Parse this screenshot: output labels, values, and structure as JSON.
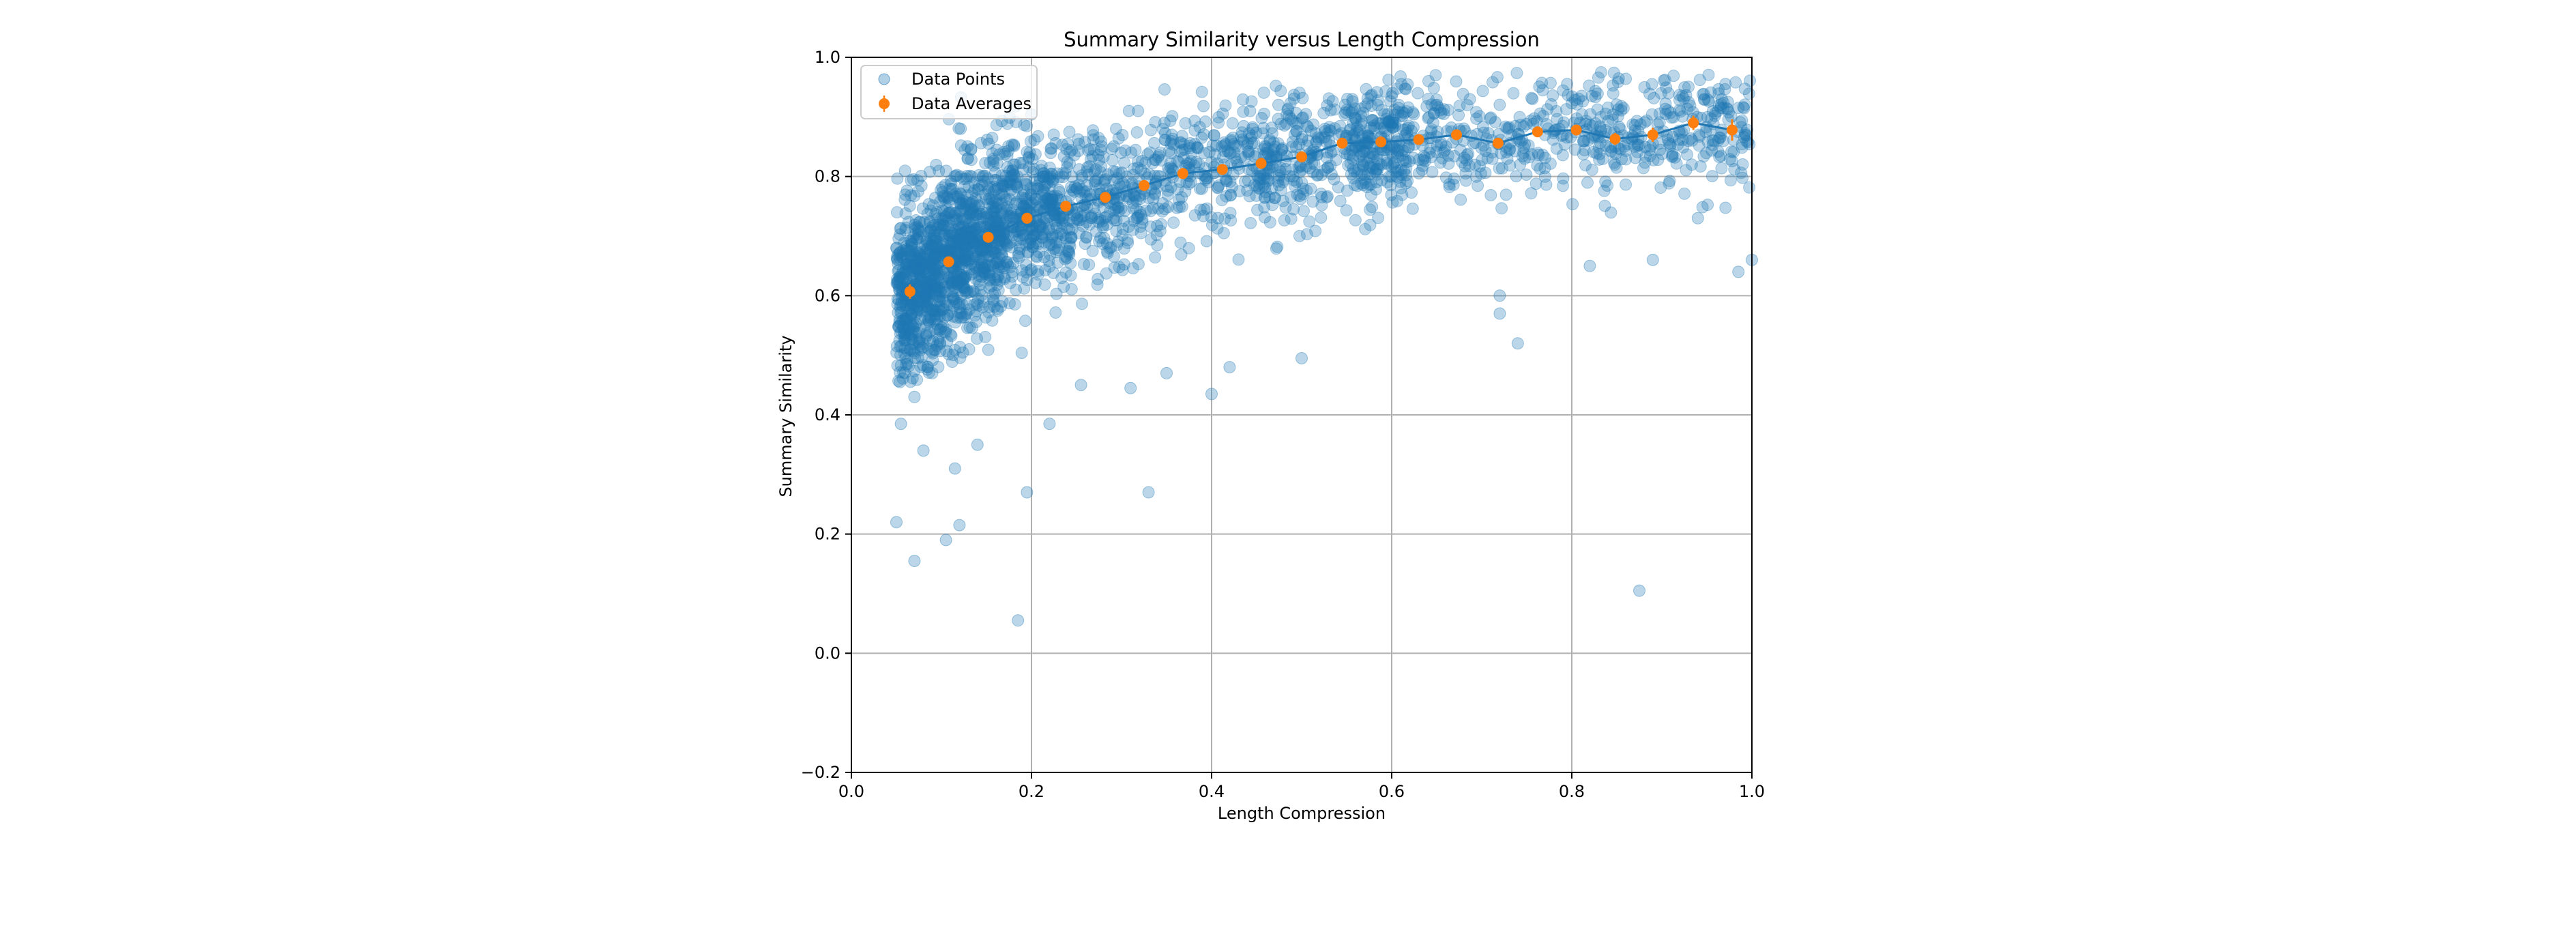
{
  "chart_data": {
    "type": "scatter",
    "title": "Summary Similarity versus Length Compression",
    "xlabel": "Length Compression",
    "ylabel": "Summary Similarity",
    "xlim": [
      0.0,
      1.0
    ],
    "ylim": [
      -0.2,
      1.0
    ],
    "xticks": [
      "0.0",
      "0.2",
      "0.4",
      "0.6",
      "0.8",
      "1.0"
    ],
    "yticks": [
      "−0.2",
      "0.0",
      "0.2",
      "0.4",
      "0.6",
      "0.8",
      "1.0"
    ],
    "grid": true,
    "legend_position": "top-left",
    "colors": {
      "points": "#1f77b4",
      "averages": "#ff7f0e",
      "line": "#1f77b4"
    },
    "series": [
      {
        "name": "Data Points",
        "kind": "scatter",
        "approx_count": 3000,
        "outliers": [
          [
            0.05,
            0.22
          ],
          [
            0.07,
            0.155
          ],
          [
            0.105,
            0.19
          ],
          [
            0.12,
            0.215
          ],
          [
            0.185,
            0.055
          ],
          [
            0.195,
            0.27
          ],
          [
            0.33,
            0.27
          ],
          [
            0.875,
            0.105
          ],
          [
            0.115,
            0.31
          ],
          [
            0.055,
            0.385
          ],
          [
            0.08,
            0.34
          ],
          [
            0.14,
            0.35
          ],
          [
            0.22,
            0.385
          ],
          [
            0.255,
            0.45
          ],
          [
            0.31,
            0.445
          ],
          [
            0.35,
            0.47
          ],
          [
            0.4,
            0.435
          ],
          [
            0.42,
            0.48
          ],
          [
            0.5,
            0.495
          ],
          [
            0.72,
            0.6
          ],
          [
            0.72,
            0.57
          ],
          [
            0.74,
            0.52
          ],
          [
            0.82,
            0.65
          ],
          [
            0.89,
            0.66
          ],
          [
            0.94,
            0.73
          ],
          [
            0.985,
            0.64
          ],
          [
            1.0,
            0.66
          ],
          [
            0.07,
            0.43
          ]
        ]
      },
      {
        "name": "Data Averages",
        "kind": "errorbar",
        "x": [
          0.065,
          0.108,
          0.152,
          0.195,
          0.238,
          0.282,
          0.325,
          0.368,
          0.412,
          0.455,
          0.5,
          0.545,
          0.588,
          0.63,
          0.672,
          0.718,
          0.762,
          0.805,
          0.848,
          0.89,
          0.935,
          0.978
        ],
        "y": [
          0.607,
          0.657,
          0.698,
          0.73,
          0.75,
          0.765,
          0.785,
          0.805,
          0.812,
          0.822,
          0.833,
          0.856,
          0.858,
          0.862,
          0.87,
          0.856,
          0.875,
          0.878,
          0.863,
          0.87,
          0.89,
          0.878
        ],
        "yerr": [
          0.012,
          0.007,
          0.005,
          0.004,
          0.004,
          0.004,
          0.004,
          0.004,
          0.004,
          0.004,
          0.004,
          0.004,
          0.004,
          0.004,
          0.005,
          0.006,
          0.007,
          0.008,
          0.01,
          0.012,
          0.012,
          0.018
        ]
      }
    ]
  }
}
